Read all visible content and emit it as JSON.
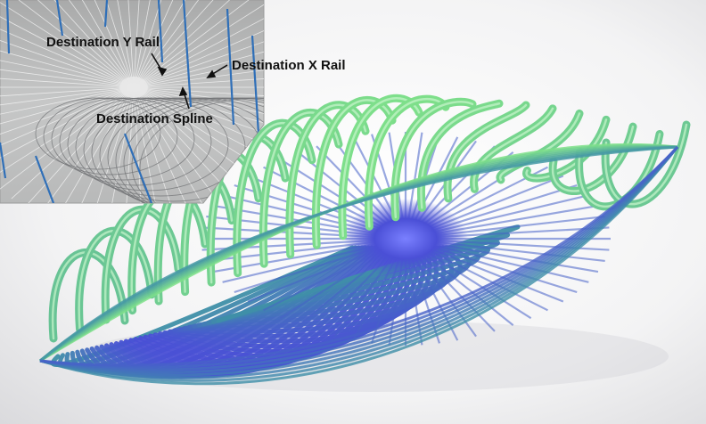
{
  "inset": {
    "labels": {
      "destination_y_rail": "Destination Y Rail",
      "destination_x_rail": "Destination X Rail",
      "destination_spline": "Destination Spline"
    }
  },
  "colors": {
    "background_light": "#ffffff",
    "background_shadow": "#d9d9dc",
    "green_rail": "#7fe08a",
    "blue_center": "#4a4fd6",
    "teal_mid": "#3f8fa8",
    "inset_bg": "#bfc0c0",
    "inset_blue_rail": "#2f6fb8"
  }
}
